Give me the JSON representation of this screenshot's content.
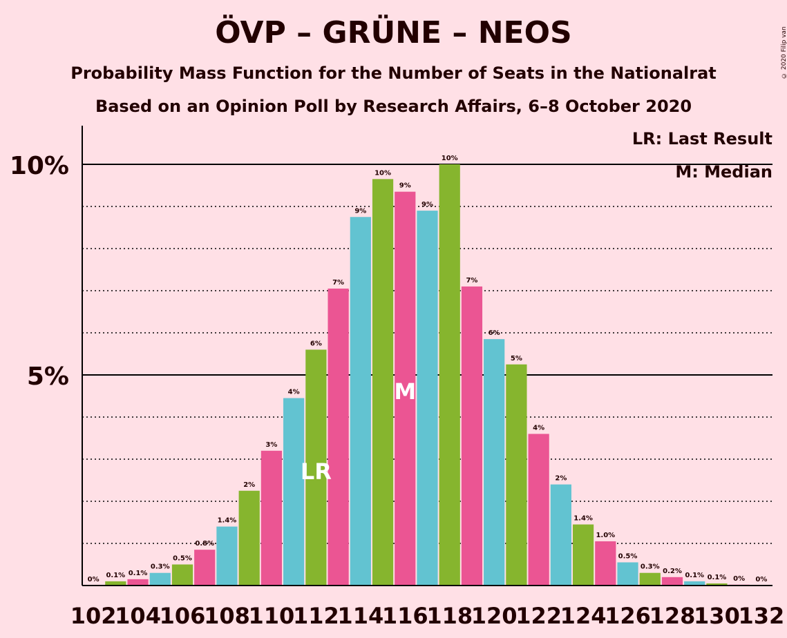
{
  "title": "ÖVP – GRÜNE – NEOS",
  "subtitle": "Probability Mass Function for the Number of Seats in the Nationalrat",
  "subtitle2": "Based on an Opinion Poll by Research Affairs, 6–8 October 2020",
  "copyright": "© 2020 Filip van Laenen",
  "legend": {
    "last_result": "LR: Last Result",
    "median": "M: Median",
    "placement": "top-right"
  },
  "colors": {
    "background": "#ffe0e6",
    "text": "#220000",
    "pink": "#eb5593",
    "blue": "#62c3d1",
    "green": "#86b52e"
  },
  "chart_data": {
    "type": "bar",
    "x": [
      102,
      103,
      104,
      105,
      106,
      107,
      108,
      109,
      110,
      111,
      112,
      113,
      114,
      115,
      116,
      117,
      118,
      119,
      120,
      121,
      122,
      123,
      124,
      125,
      126,
      127,
      128,
      129,
      130,
      131,
      132
    ],
    "values": [
      0,
      0.1,
      0.15,
      0.3,
      0.5,
      0.85,
      1.4,
      2.25,
      3.2,
      4.45,
      5.6,
      7.05,
      8.75,
      9.65,
      9.35,
      8.9,
      10.0,
      7.1,
      5.85,
      5.25,
      3.6,
      2.4,
      1.45,
      1.05,
      0.55,
      0.3,
      0.2,
      0.1,
      0.05,
      0.02,
      0
    ],
    "data_labels": [
      "0%",
      "0.1%",
      "0.1%",
      "0.3%",
      "0.5%",
      "0.8%",
      "1.4%",
      "2%",
      "3%",
      "4%",
      "6%",
      "7%",
      "9%",
      "10%",
      "9%",
      "9%",
      "10%",
      "7%",
      "6%",
      "5%",
      "4%",
      "2%",
      "1.4%",
      "1.0%",
      "0.5%",
      "0.3%",
      "0.2%",
      "0.1%",
      "0.1%",
      "0%",
      "0%"
    ],
    "bar_colors": [
      "blue",
      "green",
      "pink",
      "blue",
      "green",
      "pink",
      "blue",
      "green",
      "pink",
      "blue",
      "green",
      "pink",
      "blue",
      "green",
      "pink",
      "blue",
      "green",
      "pink",
      "blue",
      "green",
      "pink",
      "blue",
      "green",
      "pink",
      "blue",
      "green",
      "pink",
      "blue",
      "green",
      "pink",
      "blue"
    ],
    "x_tick_labels": [
      "102",
      "104",
      "106",
      "108",
      "110",
      "112",
      "114",
      "116",
      "118",
      "120",
      "122",
      "124",
      "126",
      "128",
      "130",
      "132"
    ],
    "y_ticks": [
      5,
      10
    ],
    "y_tick_labels": [
      "5%",
      "10%"
    ],
    "ylim": [
      0,
      10.9
    ],
    "last_result": {
      "x": 112,
      "label": "LR"
    },
    "median": {
      "x": 116,
      "label": "M"
    }
  }
}
